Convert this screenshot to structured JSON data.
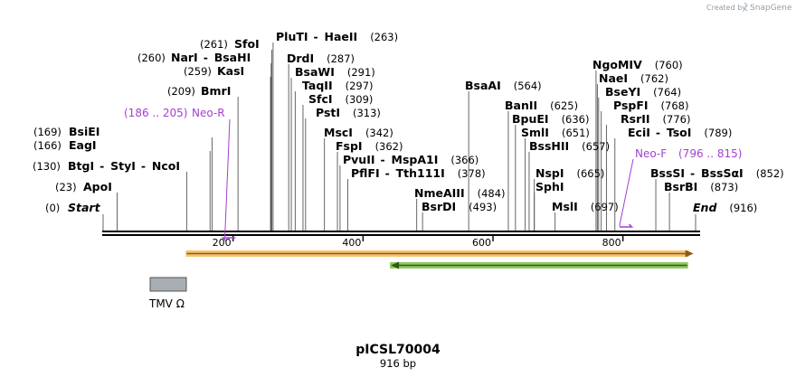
{
  "title": "pICSL70004",
  "length_label": "916 bp",
  "seq_length": 916,
  "credit": {
    "text": "Created by",
    "brand": "SnapGene"
  },
  "colors": {
    "feature_label": "#a43fd1",
    "orange_feature": "#f5ad3f",
    "orange_outline": "#8a5a1a",
    "green_feature": "#7ec04a",
    "green_outline": "#2d5e10",
    "tmv_box": "#a9adb4",
    "site_line": "#555555",
    "backbone": "#000000"
  },
  "ruler_ticks": [
    "200",
    "400",
    "600",
    "800"
  ],
  "sites": [
    {
      "pos": 0,
      "segments": [
        {
          "name": "Start",
          "italic": true
        }
      ],
      "label_pos": "(0)",
      "pos_side": "left"
    },
    {
      "pos": 23,
      "segments": [
        {
          "name": "ApoI"
        }
      ],
      "label_pos": "(23)",
      "pos_side": "left"
    },
    {
      "pos": 130,
      "segments": [
        {
          "name": "BtgI"
        },
        {
          "name": "StyI"
        },
        {
          "name": "NcoI"
        }
      ],
      "label_pos": "(130)",
      "pos_side": "left"
    },
    {
      "pos": 166,
      "segments": [
        {
          "name": "EagI"
        }
      ],
      "label_pos": "(166)",
      "pos_side": "left"
    },
    {
      "pos": 169,
      "segments": [
        {
          "name": "BsiEI"
        }
      ],
      "label_pos": "(169)",
      "pos_side": "left"
    },
    {
      "pos": 209,
      "segments": [
        {
          "name": "BmrI"
        }
      ],
      "label_pos": "(209)",
      "pos_side": "left"
    },
    {
      "pos": 259,
      "segments": [
        {
          "name": "KasI"
        }
      ],
      "label_pos": "(259)",
      "pos_side": "left"
    },
    {
      "pos": 260,
      "segments": [
        {
          "name": "NarI"
        },
        {
          "name": "BsaHI"
        }
      ],
      "label_pos": "(260)",
      "pos_side": "left"
    },
    {
      "pos": 261,
      "segments": [
        {
          "name": "SfoI"
        }
      ],
      "label_pos": "(261)",
      "pos_side": "left"
    },
    {
      "pos": 263,
      "segments": [
        {
          "name": "PluTI"
        },
        {
          "name": "HaeII"
        }
      ],
      "label_pos": "(263)",
      "pos_side": "right"
    },
    {
      "pos": 287,
      "segments": [
        {
          "name": "DrdI"
        }
      ],
      "label_pos": "(287)",
      "pos_side": "right"
    },
    {
      "pos": 291,
      "segments": [
        {
          "name": "BsaWI"
        }
      ],
      "label_pos": "(291)",
      "pos_side": "right"
    },
    {
      "pos": 297,
      "segments": [
        {
          "name": "TaqII"
        }
      ],
      "label_pos": "(297)",
      "pos_side": "right"
    },
    {
      "pos": 309,
      "segments": [
        {
          "name": "SfcI"
        }
      ],
      "label_pos": "(309)",
      "pos_side": "right"
    },
    {
      "pos": 313,
      "segments": [
        {
          "name": "PstI"
        }
      ],
      "label_pos": "(313)",
      "pos_side": "right"
    },
    {
      "pos": 342,
      "segments": [
        {
          "name": "MscI"
        }
      ],
      "label_pos": "(342)",
      "pos_side": "right"
    },
    {
      "pos": 362,
      "segments": [
        {
          "name": "FspI"
        }
      ],
      "label_pos": "(362)",
      "pos_side": "right"
    },
    {
      "pos": 366,
      "segments": [
        {
          "name": "PvuII"
        },
        {
          "name": "MspA1I"
        }
      ],
      "label_pos": "(366)",
      "pos_side": "right"
    },
    {
      "pos": 378,
      "segments": [
        {
          "name": "PflFI"
        },
        {
          "name": "Tth111I"
        }
      ],
      "label_pos": "(378)",
      "pos_side": "right"
    },
    {
      "pos": 484,
      "segments": [
        {
          "name": "NmeAIII"
        }
      ],
      "label_pos": "(484)",
      "pos_side": "right"
    },
    {
      "pos": 493,
      "segments": [
        {
          "name": "BsrDI"
        }
      ],
      "label_pos": "(493)",
      "pos_side": "right"
    },
    {
      "pos": 564,
      "segments": [
        {
          "name": "BsaAI"
        }
      ],
      "label_pos": "(564)",
      "pos_side": "right"
    },
    {
      "pos": 625,
      "segments": [
        {
          "name": "BanII"
        }
      ],
      "label_pos": "(625)",
      "pos_side": "right"
    },
    {
      "pos": 636,
      "segments": [
        {
          "name": "BpuEI"
        }
      ],
      "label_pos": "(636)",
      "pos_side": "right"
    },
    {
      "pos": 651,
      "segments": [
        {
          "name": "SmlI"
        }
      ],
      "label_pos": "(651)",
      "pos_side": "right"
    },
    {
      "pos": 657,
      "segments": [
        {
          "name": "BssHII"
        }
      ],
      "label_pos": "(657)",
      "pos_side": "right"
    },
    {
      "pos": 665,
      "segments": [
        {
          "name": "NspI"
        }
      ],
      "label_pos": "(665)",
      "pos_side": "right"
    },
    {
      "pos": 665,
      "segments": [
        {
          "name": "SphI"
        }
      ],
      "label_pos": "",
      "pos_side": "right"
    },
    {
      "pos": 697,
      "segments": [
        {
          "name": "MslI"
        }
      ],
      "label_pos": "(697)",
      "pos_side": "right"
    },
    {
      "pos": 760,
      "segments": [
        {
          "name": "NgoMIV"
        }
      ],
      "label_pos": "(760)",
      "pos_side": "right"
    },
    {
      "pos": 762,
      "segments": [
        {
          "name": "NaeI"
        }
      ],
      "label_pos": "(762)",
      "pos_side": "right"
    },
    {
      "pos": 764,
      "segments": [
        {
          "name": "BseYI"
        }
      ],
      "label_pos": "(764)",
      "pos_side": "right"
    },
    {
      "pos": 768,
      "segments": [
        {
          "name": "PspFI"
        }
      ],
      "label_pos": "(768)",
      "pos_side": "right"
    },
    {
      "pos": 776,
      "segments": [
        {
          "name": "RsrII"
        }
      ],
      "label_pos": "(776)",
      "pos_side": "right"
    },
    {
      "pos": 789,
      "segments": [
        {
          "name": "EciI"
        },
        {
          "name": "TsoI"
        }
      ],
      "label_pos": "(789)",
      "pos_side": "right"
    },
    {
      "pos": 852,
      "segments": [
        {
          "name": "BssSI"
        },
        {
          "name": "BssSαI"
        }
      ],
      "label_pos": "(852)",
      "pos_side": "right"
    },
    {
      "pos": 873,
      "segments": [
        {
          "name": "BsrBI"
        }
      ],
      "label_pos": "(873)",
      "pos_side": "right"
    },
    {
      "pos": 916,
      "segments": [
        {
          "name": "End",
          "italic": true
        }
      ],
      "label_pos": "(916)",
      "pos_side": "right"
    }
  ],
  "primers": [
    {
      "name": "Neo-R",
      "range": "(186 .. 205)",
      "start": 186,
      "end": 205,
      "direction": "reverse"
    },
    {
      "name": "Neo-F",
      "range": "(796 .. 815)",
      "start": 796,
      "end": 815,
      "direction": "forward"
    }
  ],
  "features": [
    {
      "name": "orange-feature",
      "start": 130,
      "end": 910,
      "direction": "forward",
      "color_key": "orange_feature"
    },
    {
      "name": "green-feature",
      "start": 440,
      "end": 910,
      "direction": "reverse",
      "color_key": "green_feature"
    },
    {
      "name": "TMV Ω",
      "start": 75,
      "end": 130,
      "label": "TMV Ω",
      "color_key": "tmv_box"
    }
  ]
}
